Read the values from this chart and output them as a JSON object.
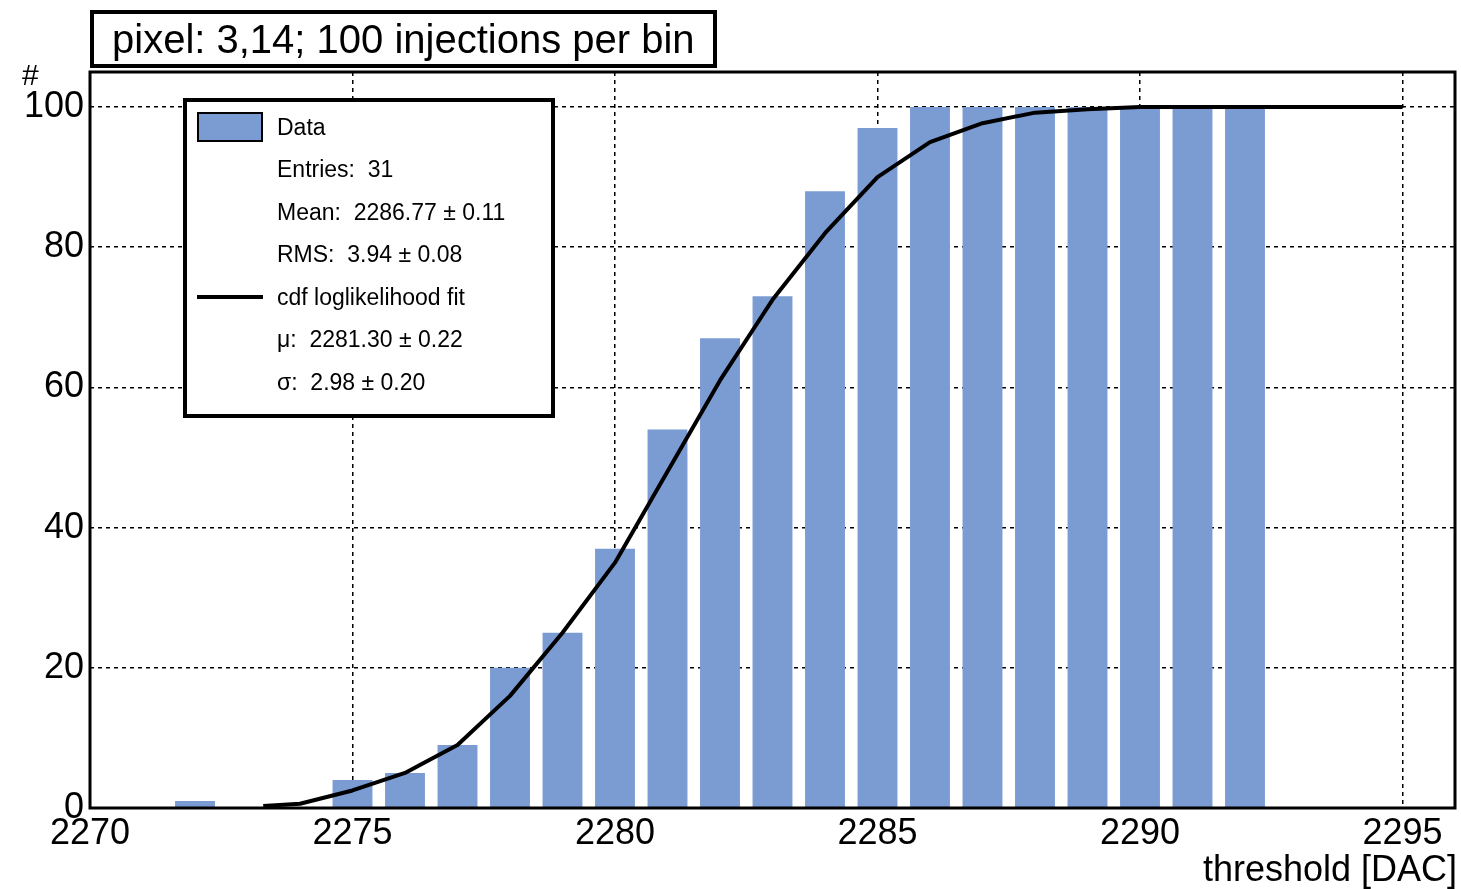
{
  "chart_data": {
    "type": "histogram",
    "title": "pixel: 3,14; 100 injections per bin",
    "xlabel": "threshold [DAC]",
    "ylabel": "#",
    "bins": [
      2271.5,
      2272.5,
      2273.5,
      2274.5,
      2275.5,
      2276.5,
      2277.5,
      2278.5,
      2279.5,
      2280.5,
      2281.5,
      2282.5,
      2283.5,
      2284.5,
      2285.5,
      2286.5,
      2287.5,
      2288.5,
      2289.5,
      2290.5,
      2291.5,
      2292.5
    ],
    "series": [
      {
        "name": "Data",
        "color": "#7b9bd3",
        "values": [
          1,
          0,
          0,
          4,
          5,
          9,
          20,
          25,
          37,
          54,
          67,
          73,
          88,
          97,
          100,
          100,
          100,
          100,
          100,
          100,
          100
        ]
      },
      {
        "name": "cdf loglikelihood fit",
        "type": "line",
        "color": "#000000",
        "x": [
          2273.3,
          2274,
          2275,
          2276,
          2277,
          2278,
          2279,
          2280,
          2281,
          2282,
          2283,
          2284,
          2285,
          2286,
          2287,
          2288,
          2289,
          2290,
          2295
        ],
        "values": [
          0.3,
          0.6,
          2.5,
          5,
          9,
          16,
          25,
          35,
          48,
          61,
          72.5,
          82,
          90,
          95,
          97.7,
          99.2,
          99.7,
          100,
          100
        ]
      }
    ],
    "annotations": [
      "Entries:  31",
      "Mean:  2286.77 ± 0.11",
      "RMS:  3.94 ± 0.08",
      "μ:  2281.30 ± 0.22",
      "σ:  2.98 ± 0.20"
    ],
    "xlim": [
      2270,
      2296
    ],
    "xticks": [
      2270,
      2275,
      2280,
      2285,
      2290,
      2295
    ],
    "ylim": [
      0,
      105
    ],
    "yticks": [
      0,
      20,
      40,
      60,
      80,
      100
    ],
    "grid": true,
    "legend": "top left",
    "line_style": "solid",
    "marker": "none"
  }
}
